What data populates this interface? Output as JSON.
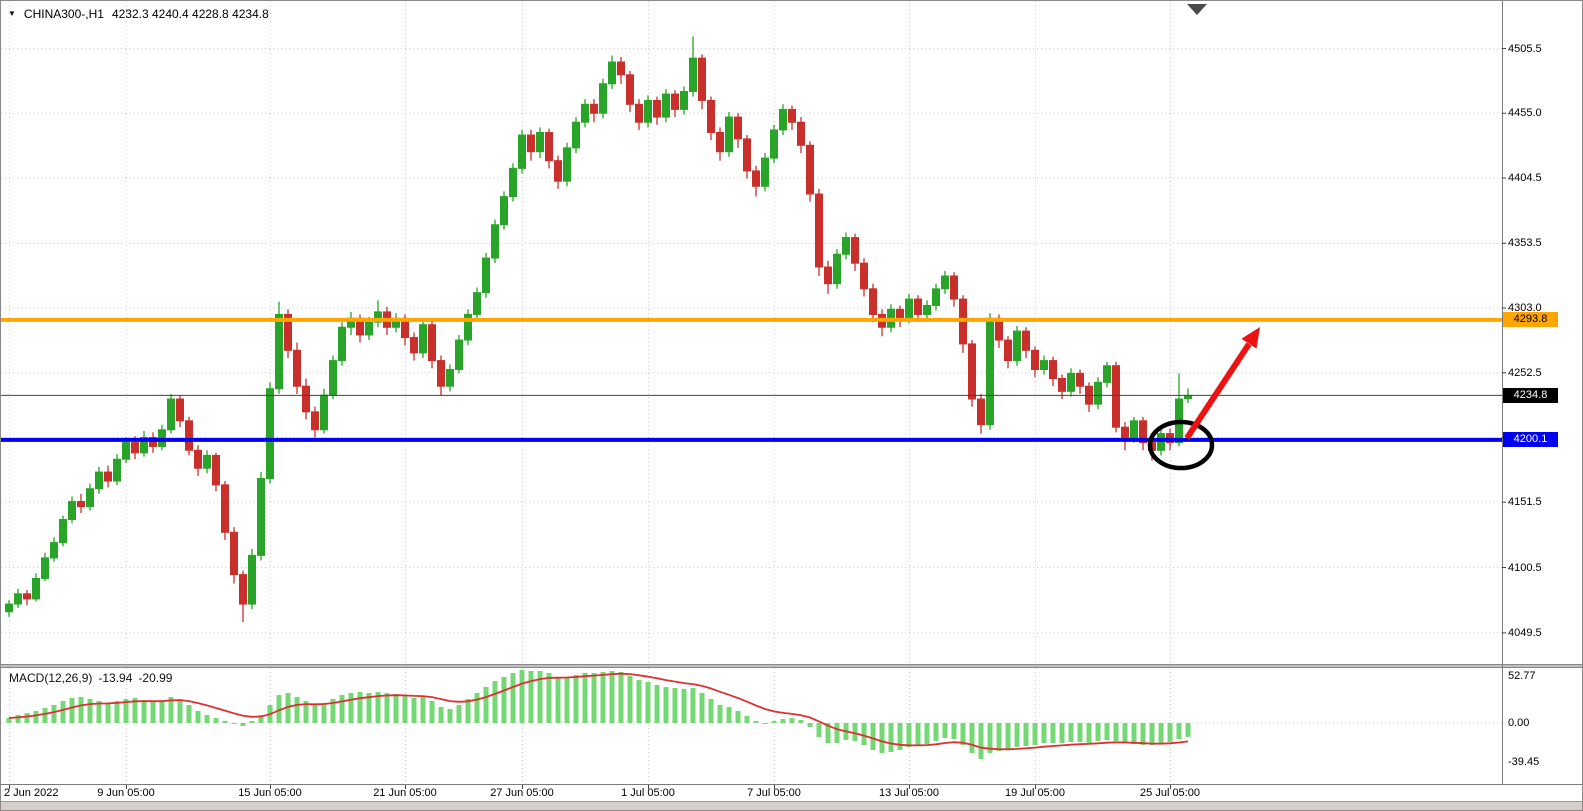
{
  "header": {
    "symbol": "CHINA300-,H1",
    "quote": "4232.3 4240.4 4228.8 4234.8"
  },
  "macd_panel": {
    "label": "MACD(12,26,9)",
    "value_main": "-13.94",
    "value_signal": "-20.99"
  },
  "price_axis": {
    "ticks": [
      {
        "label": "4505.5",
        "value": 4505.5
      },
      {
        "label": "4455.0",
        "value": 4455.0
      },
      {
        "label": "4404.5",
        "value": 4404.5
      },
      {
        "label": "4353.5",
        "value": 4353.5
      },
      {
        "label": "4303.0",
        "value": 4303.0
      },
      {
        "label": "4252.5",
        "value": 4252.5
      },
      {
        "label": "4151.5",
        "value": 4151.5
      },
      {
        "label": "4100.5",
        "value": 4100.5
      },
      {
        "label": "4049.5",
        "value": 4049.5
      }
    ],
    "grid_prices": [
      4505.5,
      4455.0,
      4404.5,
      4353.5,
      4303.0,
      4252.5,
      4202.0,
      4151.5,
      4100.5,
      4049.5
    ]
  },
  "macd_axis": {
    "ticks": [
      {
        "label": "52.77",
        "value": 52.77
      },
      {
        "label": "0.00",
        "value": 0
      },
      {
        "label": "-39.45",
        "value": -39.45
      }
    ]
  },
  "levels": {
    "resistance": {
      "label": "4293.8",
      "price": 4293.8,
      "color": "#ffa500"
    },
    "last": {
      "label": "4234.8",
      "price": 4234.8,
      "color": "#000000"
    },
    "support": {
      "label": "4200.1",
      "price": 4200.1,
      "color": "#0000f0"
    }
  },
  "colors": {
    "up": "#28a428",
    "down": "#c9302c",
    "macd_hist": "#74d874",
    "macd_signal": "#dd3030",
    "grid": "#cccccc",
    "arrow": "#ee1111",
    "price_line": "#404040",
    "annotation": "#000000"
  },
  "chart_data": {
    "type": "candlestick",
    "title": "CHINA300-,H1",
    "symbol": "CHINA300-",
    "timeframe": "H1",
    "last_quote": {
      "open": 4232.3,
      "high": 4240.4,
      "low": 4228.8,
      "close": 4234.8
    },
    "price_range": [
      4026,
      4527
    ],
    "x_labels": [
      {
        "label": "2 Jun 2022",
        "bar": 0
      },
      {
        "label": "9 Jun 05:00",
        "bar": 13
      },
      {
        "label": "15 Jun 05:00",
        "bar": 29
      },
      {
        "label": "21 Jun 05:00",
        "bar": 44
      },
      {
        "label": "27 Jun 05:00",
        "bar": 57
      },
      {
        "label": "1 Jul 05:00",
        "bar": 71
      },
      {
        "label": "7 Jul 05:00",
        "bar": 85
      },
      {
        "label": "13 Jul 05:00",
        "bar": 100
      },
      {
        "label": "19 Jul 05:00",
        "bar": 114
      },
      {
        "label": "25 Jul 05:00",
        "bar": 129
      }
    ],
    "ohlc": [
      [
        4066,
        4075,
        4062,
        4072
      ],
      [
        4072,
        4084,
        4069,
        4080
      ],
      [
        4080,
        4083,
        4071,
        4076
      ],
      [
        4076,
        4096,
        4074,
        4092
      ],
      [
        4092,
        4112,
        4090,
        4108
      ],
      [
        4108,
        4124,
        4105,
        4120
      ],
      [
        4120,
        4141,
        4117,
        4138
      ],
      [
        4138,
        4156,
        4135,
        4152
      ],
      [
        4152,
        4158,
        4143,
        4148
      ],
      [
        4148,
        4166,
        4145,
        4162
      ],
      [
        4162,
        4179,
        4158,
        4175
      ],
      [
        4175,
        4180,
        4163,
        4168
      ],
      [
        4168,
        4189,
        4165,
        4185
      ],
      [
        4185,
        4202,
        4182,
        4198
      ],
      [
        4198,
        4203,
        4185,
        4190
      ],
      [
        4190,
        4207,
        4187,
        4202
      ],
      [
        4202,
        4206,
        4190,
        4195
      ],
      [
        4195,
        4212,
        4192,
        4208
      ],
      [
        4208,
        4236,
        4205,
        4232
      ],
      [
        4232,
        4235,
        4210,
        4215
      ],
      [
        4215,
        4218,
        4188,
        4192
      ],
      [
        4192,
        4196,
        4172,
        4178
      ],
      [
        4178,
        4192,
        4174,
        4188
      ],
      [
        4188,
        4190,
        4160,
        4165
      ],
      [
        4165,
        4168,
        4122,
        4128
      ],
      [
        4128,
        4132,
        4088,
        4095
      ],
      [
        4095,
        4098,
        4058,
        4072
      ],
      [
        4072,
        4115,
        4068,
        4110
      ],
      [
        4110,
        4175,
        4106,
        4170
      ],
      [
        4170,
        4245,
        4166,
        4240
      ],
      [
        4240,
        4308,
        4236,
        4298
      ],
      [
        4298,
        4302,
        4264,
        4270
      ],
      [
        4270,
        4276,
        4236,
        4242
      ],
      [
        4242,
        4248,
        4216,
        4222
      ],
      [
        4222,
        4226,
        4202,
        4208
      ],
      [
        4208,
        4240,
        4205,
        4235
      ],
      [
        4235,
        4266,
        4232,
        4262
      ],
      [
        4262,
        4292,
        4258,
        4288
      ],
      [
        4288,
        4300,
        4282,
        4295
      ],
      [
        4295,
        4298,
        4276,
        4282
      ],
      [
        4282,
        4296,
        4278,
        4292
      ],
      [
        4292,
        4309,
        4288,
        4300
      ],
      [
        4300,
        4304,
        4282,
        4288
      ],
      [
        4288,
        4299,
        4284,
        4295
      ],
      [
        4295,
        4298,
        4274,
        4280
      ],
      [
        4280,
        4284,
        4262,
        4268
      ],
      [
        4268,
        4294,
        4264,
        4290
      ],
      [
        4290,
        4293,
        4256,
        4262
      ],
      [
        4262,
        4266,
        4235,
        4242
      ],
      [
        4242,
        4259,
        4238,
        4255
      ],
      [
        4255,
        4282,
        4252,
        4278
      ],
      [
        4278,
        4302,
        4274,
        4298
      ],
      [
        4298,
        4319,
        4294,
        4315
      ],
      [
        4315,
        4346,
        4311,
        4342
      ],
      [
        4342,
        4372,
        4338,
        4368
      ],
      [
        4368,
        4394,
        4364,
        4390
      ],
      [
        4390,
        4416,
        4386,
        4412
      ],
      [
        4412,
        4442,
        4408,
        4438
      ],
      [
        4438,
        4442,
        4418,
        4425
      ],
      [
        4425,
        4444,
        4420,
        4440
      ],
      [
        4440,
        4443,
        4412,
        4418
      ],
      [
        4418,
        4422,
        4396,
        4402
      ],
      [
        4402,
        4432,
        4398,
        4428
      ],
      [
        4428,
        4452,
        4424,
        4448
      ],
      [
        4448,
        4466,
        4444,
        4462
      ],
      [
        4462,
        4466,
        4448,
        4455
      ],
      [
        4455,
        4482,
        4451,
        4478
      ],
      [
        4478,
        4500,
        4474,
        4495
      ],
      [
        4495,
        4499,
        4478,
        4485
      ],
      [
        4485,
        4488,
        4456,
        4462
      ],
      [
        4462,
        4466,
        4442,
        4448
      ],
      [
        4448,
        4469,
        4444,
        4465
      ],
      [
        4465,
        4468,
        4446,
        4452
      ],
      [
        4452,
        4474,
        4448,
        4470
      ],
      [
        4470,
        4473,
        4452,
        4458
      ],
      [
        4458,
        4476,
        4454,
        4472
      ],
      [
        4472,
        4515,
        4468,
        4498
      ],
      [
        4498,
        4501,
        4458,
        4465
      ],
      [
        4465,
        4468,
        4434,
        4440
      ],
      [
        4440,
        4444,
        4418,
        4425
      ],
      [
        4425,
        4456,
        4421,
        4452
      ],
      [
        4452,
        4455,
        4428,
        4435
      ],
      [
        4435,
        4438,
        4404,
        4410
      ],
      [
        4410,
        4414,
        4390,
        4398
      ],
      [
        4398,
        4424,
        4394,
        4420
      ],
      [
        4420,
        4446,
        4416,
        4442
      ],
      [
        4442,
        4462,
        4438,
        4458
      ],
      [
        4458,
        4461,
        4442,
        4448
      ],
      [
        4448,
        4452,
        4424,
        4430
      ],
      [
        4430,
        4433,
        4386,
        4392
      ],
      [
        4392,
        4396,
        4328,
        4335
      ],
      [
        4335,
        4340,
        4314,
        4322
      ],
      [
        4322,
        4349,
        4318,
        4345
      ],
      [
        4345,
        4362,
        4341,
        4358
      ],
      [
        4358,
        4361,
        4332,
        4338
      ],
      [
        4338,
        4342,
        4312,
        4318
      ],
      [
        4318,
        4322,
        4292,
        4298
      ],
      [
        4298,
        4302,
        4281,
        4288
      ],
      [
        4288,
        4306,
        4284,
        4302
      ],
      [
        4302,
        4305,
        4288,
        4295
      ],
      [
        4295,
        4314,
        4291,
        4310
      ],
      [
        4310,
        4313,
        4292,
        4298
      ],
      [
        4298,
        4309,
        4294,
        4305
      ],
      [
        4305,
        4322,
        4301,
        4318
      ],
      [
        4318,
        4332,
        4314,
        4328
      ],
      [
        4328,
        4331,
        4304,
        4310
      ],
      [
        4310,
        4313,
        4268,
        4275
      ],
      [
        4275,
        4278,
        4226,
        4232
      ],
      [
        4232,
        4236,
        4205,
        4212
      ],
      [
        4212,
        4299,
        4208,
        4295
      ],
      [
        4295,
        4298,
        4272,
        4278
      ],
      [
        4278,
        4281,
        4256,
        4262
      ],
      [
        4262,
        4289,
        4258,
        4285
      ],
      [
        4285,
        4288,
        4264,
        4270
      ],
      [
        4270,
        4273,
        4249,
        4255
      ],
      [
        4255,
        4266,
        4251,
        4262
      ],
      [
        4262,
        4265,
        4242,
        4248
      ],
      [
        4248,
        4251,
        4232,
        4238
      ],
      [
        4238,
        4256,
        4234,
        4252
      ],
      [
        4252,
        4255,
        4236,
        4242
      ],
      [
        4242,
        4245,
        4222,
        4228
      ],
      [
        4228,
        4249,
        4224,
        4245
      ],
      [
        4245,
        4261,
        4241,
        4258
      ],
      [
        4258,
        4261,
        4206,
        4210
      ],
      [
        4210,
        4214,
        4192,
        4202
      ],
      [
        4202,
        4218,
        4198,
        4215
      ],
      [
        4215,
        4218,
        4192,
        4198
      ],
      [
        4198,
        4201,
        4184,
        4192
      ],
      [
        4192,
        4208,
        4188,
        4205
      ],
      [
        4205,
        4209,
        4192,
        4198
      ],
      [
        4198,
        4252,
        4195,
        4232
      ],
      [
        4232.3,
        4240.4,
        4228.8,
        4234.8
      ]
    ],
    "macd": {
      "params": "12,26,9",
      "main_last": -13.94,
      "signal_last": -20.99,
      "values": [
        5,
        8,
        10,
        12,
        15,
        18,
        22,
        25,
        26,
        24,
        22,
        20,
        22,
        24,
        25,
        23,
        21,
        22,
        26,
        24,
        18,
        12,
        8,
        5,
        2,
        -1,
        -3,
        2,
        8,
        18,
        28,
        30,
        26,
        22,
        18,
        20,
        24,
        28,
        30,
        31,
        30,
        31,
        30,
        29,
        27,
        25,
        26,
        22,
        16,
        14,
        18,
        24,
        30,
        36,
        42,
        46,
        50,
        53,
        52,
        52,
        50,
        46,
        46,
        48,
        50,
        50,
        51,
        52,
        51,
        47,
        43,
        41,
        38,
        36,
        35,
        34,
        35,
        30,
        24,
        18,
        16,
        12,
        7,
        2,
        0,
        2,
        4,
        5,
        3,
        -4,
        -14,
        -20,
        -20,
        -17,
        -18,
        -22,
        -27,
        -30,
        -29,
        -27,
        -24,
        -23,
        -21,
        -18,
        -15,
        -16,
        -22,
        -30,
        -36,
        -30,
        -28,
        -27,
        -24,
        -23,
        -22,
        -20,
        -20,
        -20,
        -19,
        -19,
        -20,
        -18,
        -17,
        -18,
        -20,
        -21,
        -22,
        -22,
        -21,
        -19,
        -16,
        -13.94
      ]
    }
  }
}
